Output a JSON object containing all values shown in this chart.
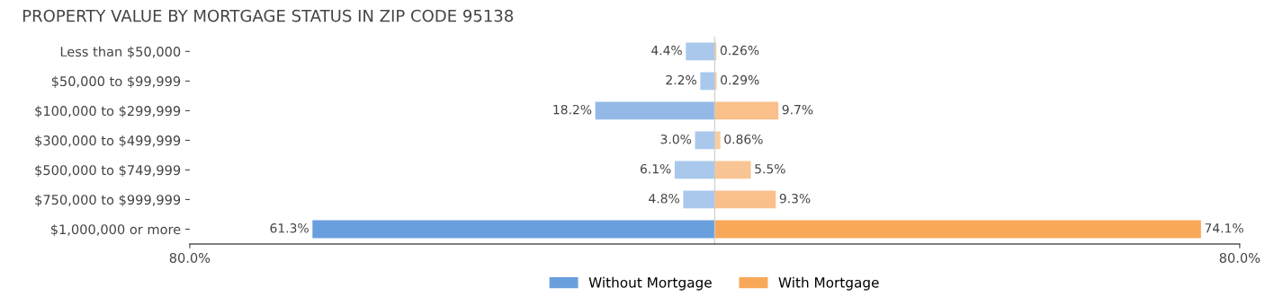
{
  "chart_data": {
    "type": "bar",
    "orientation": "horizontal",
    "title": "PROPERTY VALUE BY MORTGAGE STATUS IN ZIP CODE 95138",
    "categories": [
      "Less than $50,000",
      "$50,000 to $99,999",
      "$100,000 to $299,999",
      "$300,000 to $499,999",
      "$500,000 to $749,999",
      "$750,000 to $999,999",
      "$1,000,000 or more"
    ],
    "series": [
      {
        "name": "Without Mortgage",
        "color": "#6a9fde",
        "colors": [
          "#a9c8ec",
          "#a9c8ec",
          "#94b9e6",
          "#a9c8ec",
          "#a9c8ec",
          "#a9c8ec",
          "#6a9fde"
        ],
        "base": [
          -4.4,
          -2.2,
          -18.2,
          -3.0,
          -6.1,
          -4.8,
          -61.3
        ],
        "values": [
          4.4,
          2.2,
          18.2,
          3.0,
          6.1,
          4.8,
          61.3
        ],
        "value_labels": [
          "4.4%",
          "2.2%",
          "18.2%",
          "3.0%",
          "6.1%",
          "4.8%",
          "61.3%"
        ]
      },
      {
        "name": "With Mortgage",
        "color": "#f9a85a",
        "colors": [
          "#f9cba0",
          "#f9cba0",
          "#f9c08a",
          "#f9cba0",
          "#f9c594",
          "#f9c08c",
          "#f9a85a"
        ],
        "values": [
          0.26,
          0.29,
          9.7,
          0.86,
          5.5,
          9.3,
          74.1
        ],
        "value_labels": [
          "0.26%",
          "0.29%",
          "9.7%",
          "0.86%",
          "5.5%",
          "9.3%",
          "74.1%"
        ]
      }
    ],
    "xlim": [
      -80,
      80
    ],
    "xticks": [
      {
        "value": -80,
        "label": "80.0%"
      },
      {
        "value": 80,
        "label": "80.0%"
      }
    ],
    "grid": false,
    "legend": "bottom"
  }
}
